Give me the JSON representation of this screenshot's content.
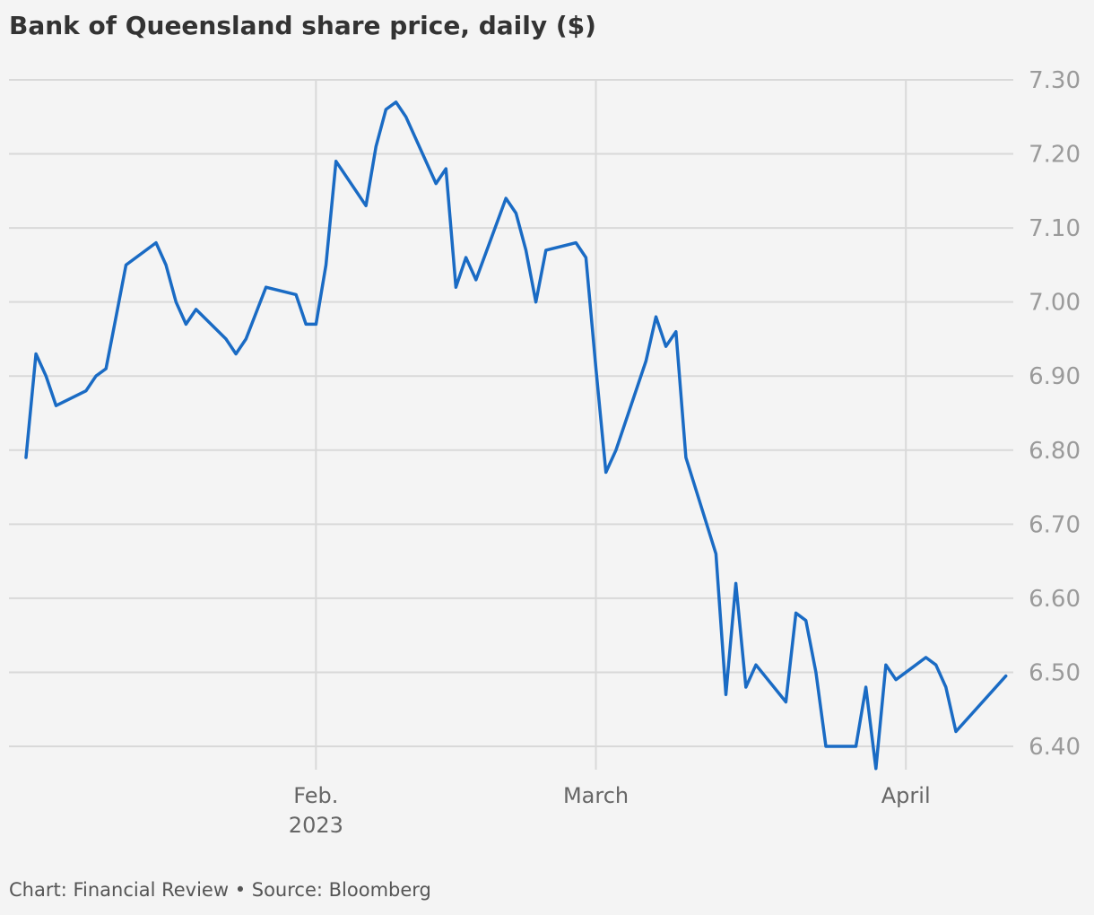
{
  "footer": "Chart: Financial Review • Source: Bloomberg",
  "chart_data": {
    "type": "line",
    "title": "Bank of Queensland share price, daily ($)",
    "xlabel": "",
    "ylabel": "",
    "ylim": [
      6.37,
      7.3
    ],
    "y_ticks": [
      "6.40",
      "6.50",
      "6.60",
      "6.70",
      "6.80",
      "6.90",
      "7.00",
      "7.10",
      "7.20",
      "7.30"
    ],
    "x_ticks": [
      {
        "date": "2023-02-01",
        "label": "Feb.",
        "sublabel": "2023"
      },
      {
        "date": "2023-03-01",
        "label": "March",
        "sublabel": ""
      },
      {
        "date": "2023-04-01",
        "label": "April",
        "sublabel": ""
      }
    ],
    "grid": true,
    "color": "#1a6bc4",
    "series": [
      {
        "name": "",
        "points": [
          [
            "2023-01-03",
            6.79
          ],
          [
            "2023-01-04",
            6.93
          ],
          [
            "2023-01-05",
            6.9
          ],
          [
            "2023-01-06",
            6.86
          ],
          [
            "2023-01-09",
            6.88
          ],
          [
            "2023-01-10",
            6.9
          ],
          [
            "2023-01-11",
            6.91
          ],
          [
            "2023-01-12",
            6.98
          ],
          [
            "2023-01-13",
            7.05
          ],
          [
            "2023-01-16",
            7.08
          ],
          [
            "2023-01-17",
            7.05
          ],
          [
            "2023-01-18",
            7.0
          ],
          [
            "2023-01-19",
            6.97
          ],
          [
            "2023-01-20",
            6.99
          ],
          [
            "2023-01-23",
            6.95
          ],
          [
            "2023-01-24",
            6.93
          ],
          [
            "2023-01-25",
            6.95
          ],
          [
            "2023-01-27",
            7.02
          ],
          [
            "2023-01-30",
            7.01
          ],
          [
            "2023-01-31",
            6.97
          ],
          [
            "2023-02-01",
            6.97
          ],
          [
            "2023-02-02",
            7.05
          ],
          [
            "2023-02-03",
            7.19
          ],
          [
            "2023-02-06",
            7.13
          ],
          [
            "2023-02-07",
            7.21
          ],
          [
            "2023-02-08",
            7.26
          ],
          [
            "2023-02-09",
            7.27
          ],
          [
            "2023-02-10",
            7.25
          ],
          [
            "2023-02-13",
            7.16
          ],
          [
            "2023-02-14",
            7.18
          ],
          [
            "2023-02-15",
            7.02
          ],
          [
            "2023-02-16",
            7.06
          ],
          [
            "2023-02-17",
            7.03
          ],
          [
            "2023-02-20",
            7.14
          ],
          [
            "2023-02-21",
            7.12
          ],
          [
            "2023-02-22",
            7.07
          ],
          [
            "2023-02-23",
            7.0
          ],
          [
            "2023-02-24",
            7.07
          ],
          [
            "2023-02-27",
            7.08
          ],
          [
            "2023-02-28",
            7.06
          ],
          [
            "2023-03-01",
            6.91
          ],
          [
            "2023-03-02",
            6.77
          ],
          [
            "2023-03-03",
            6.8
          ],
          [
            "2023-03-06",
            6.92
          ],
          [
            "2023-03-07",
            6.98
          ],
          [
            "2023-03-08",
            6.94
          ],
          [
            "2023-03-09",
            6.96
          ],
          [
            "2023-03-10",
            6.79
          ],
          [
            "2023-03-13",
            6.66
          ],
          [
            "2023-03-14",
            6.47
          ],
          [
            "2023-03-15",
            6.62
          ],
          [
            "2023-03-16",
            6.48
          ],
          [
            "2023-03-17",
            6.51
          ],
          [
            "2023-03-20",
            6.46
          ],
          [
            "2023-03-21",
            6.58
          ],
          [
            "2023-03-22",
            6.57
          ],
          [
            "2023-03-23",
            6.5
          ],
          [
            "2023-03-24",
            6.4
          ],
          [
            "2023-03-27",
            6.4
          ],
          [
            "2023-03-28",
            6.48
          ],
          [
            "2023-03-29",
            6.37
          ],
          [
            "2023-03-30",
            6.51
          ],
          [
            "2023-03-31",
            6.49
          ],
          [
            "2023-04-03",
            6.52
          ],
          [
            "2023-04-04",
            6.51
          ],
          [
            "2023-04-05",
            6.48
          ],
          [
            "2023-04-06",
            6.42
          ],
          [
            "2023-04-11",
            6.495
          ]
        ]
      }
    ]
  }
}
